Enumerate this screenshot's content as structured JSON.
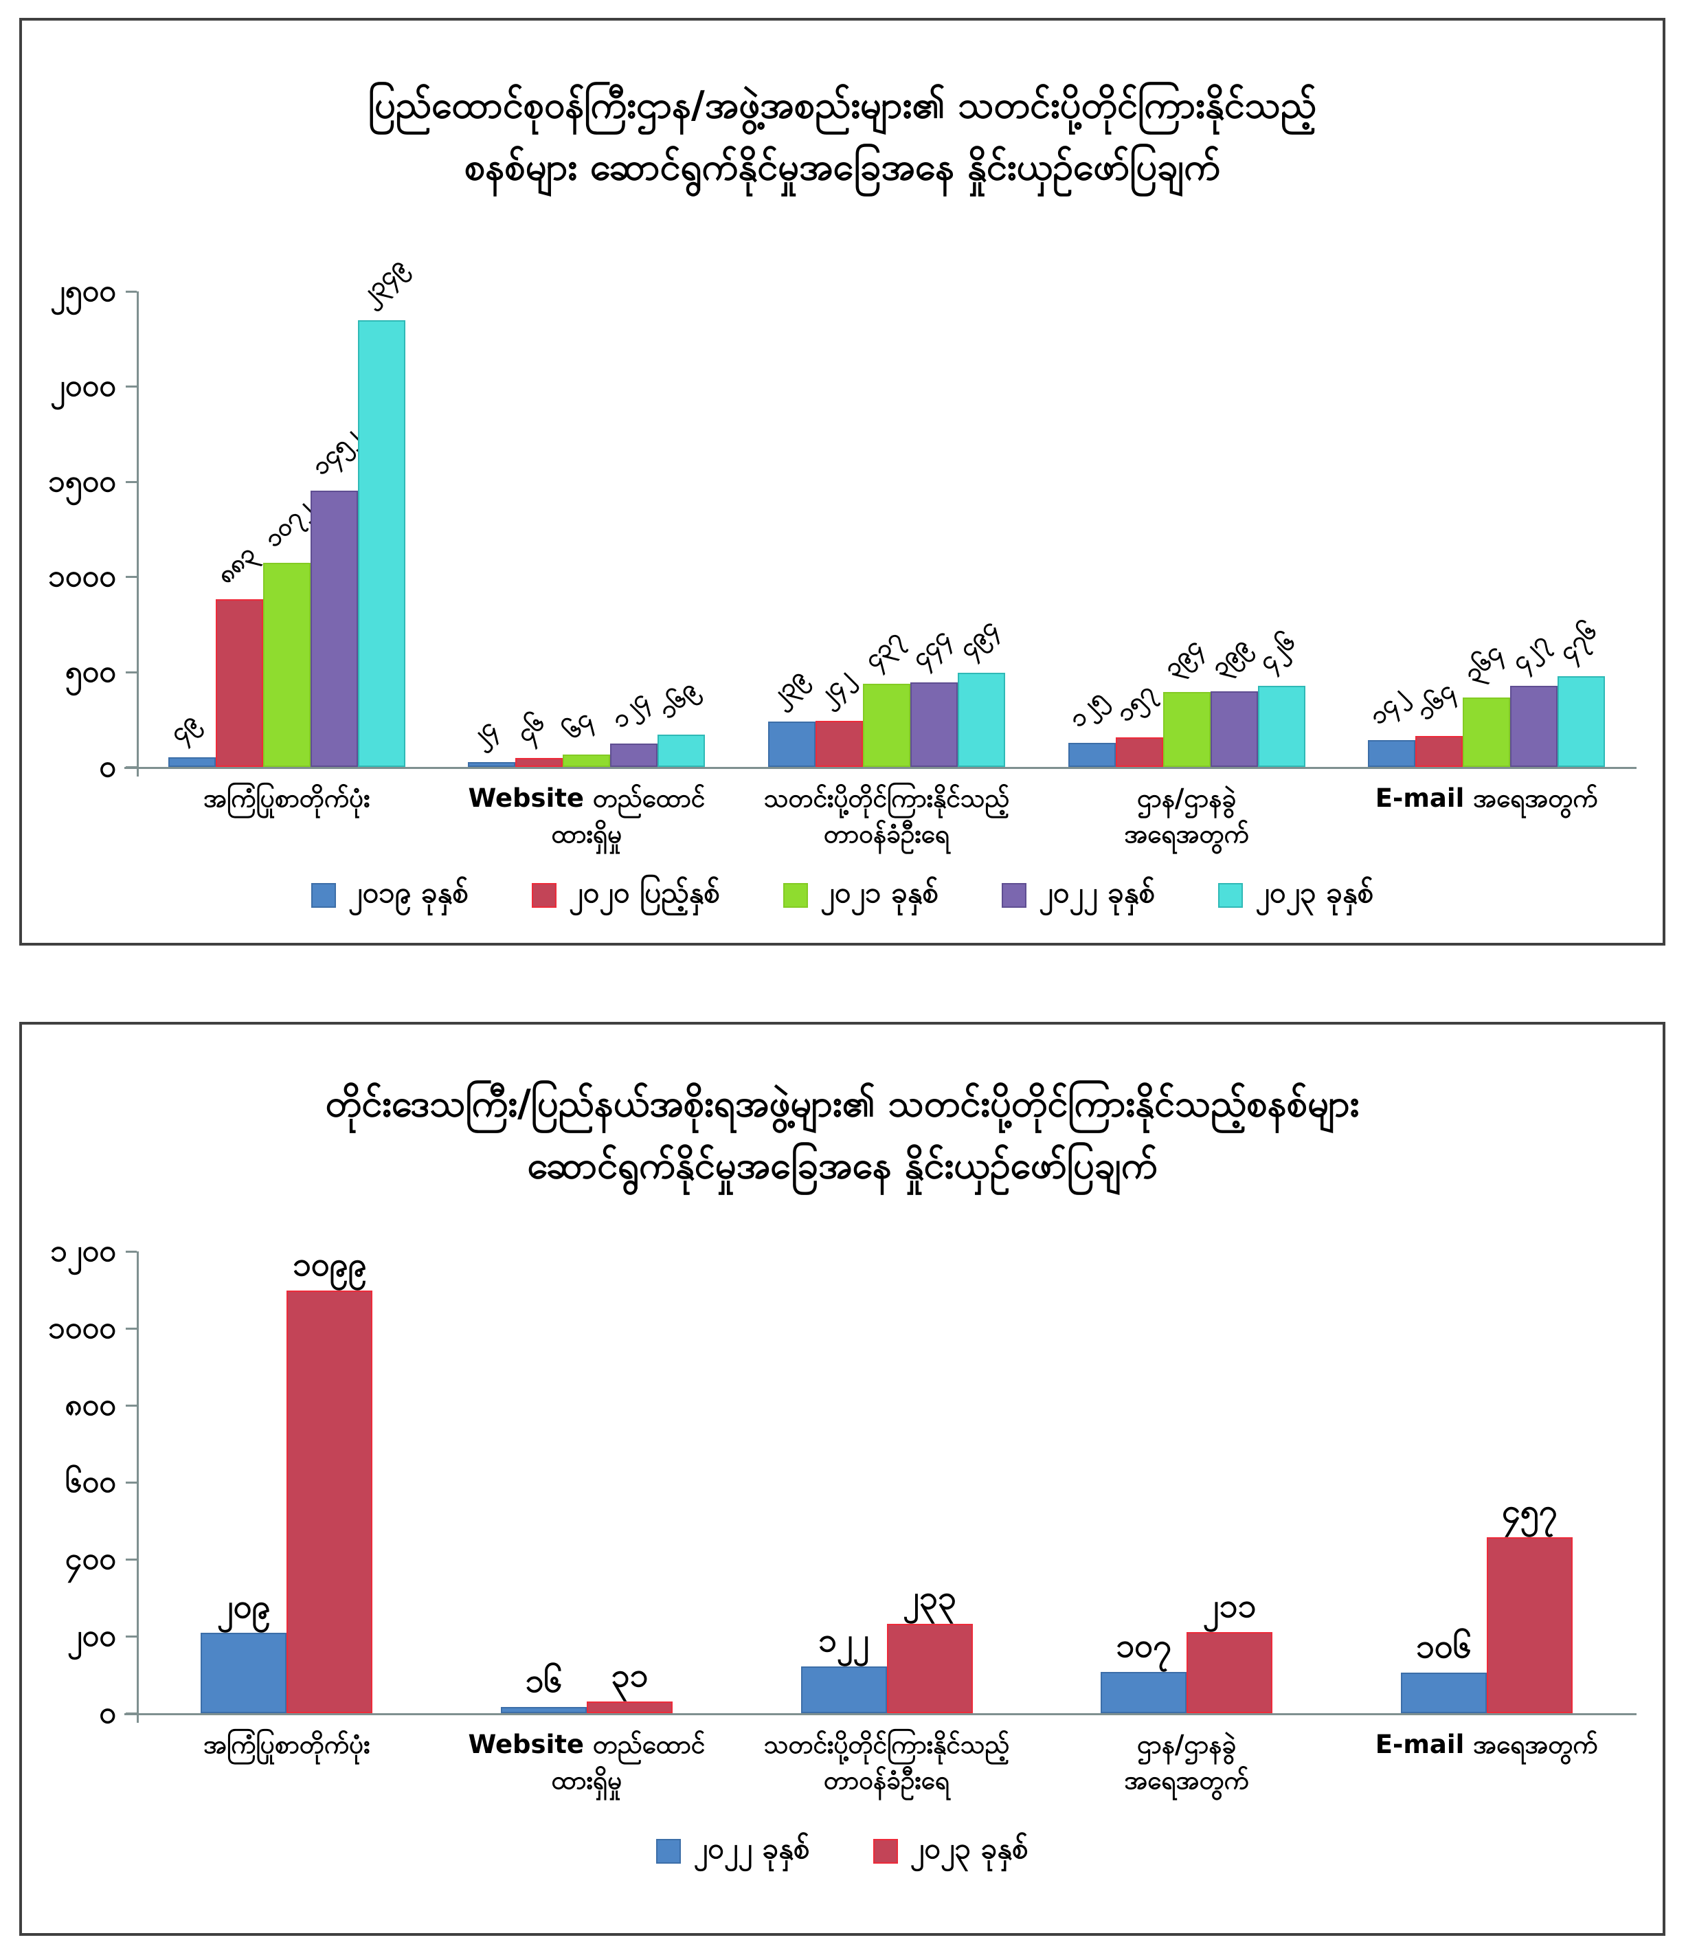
{
  "top_chart": {
    "title_line1": "ပြည်ထောင်စုဝန်ကြီးဌာန/အဖွဲ့အစည်းများ၏ သတင်းပို့တိုင်ကြားနိုင်သည့်",
    "title_line2": "စနစ်များ ဆောင်ရွက်နိုင်မှုအခြေအနေ နှိုင်းယှဉ်ဖော်ပြချက်"
  },
  "bottom_chart": {
    "title_line1": "တိုင်းဒေသကြီး/ပြည်နယ်အစိုးရအဖွဲ့များ၏ သတင်းပို့တိုင်ကြားနိုင်သည့်စနစ်များ",
    "title_line2": "ဆောင်ရွက်နိုင်မှုအခြေအနေ နှိုင်းယှဉ်ဖော်ပြချက်"
  },
  "categories_display": [
    {
      "line1": "အကြံပြုစာတိုက်ပုံး",
      "line2": ""
    },
    {
      "line1": "Website တည်ထောင်",
      "line2": "ထားရှိမှု"
    },
    {
      "line1": "သတင်းပို့တိုင်ကြားနိုင်သည့်",
      "line2": "တာဝန်ခံဦးရေ"
    },
    {
      "line1": "ဌာန/ဌာနခွဲ",
      "line2": "အရေအတွက်"
    },
    {
      "line1": "E-mail အရေအတွက်",
      "line2": ""
    }
  ],
  "colors": {
    "blue": {
      "fill": "#4E86C6",
      "border": "#3C6EA8"
    },
    "red": {
      "fill": "#C34457",
      "border": "#ED2B3A"
    },
    "green": {
      "fill": "#8FDC2F",
      "border": "#83CB24"
    },
    "purple": {
      "fill": "#7B67AF",
      "border": "#5F4E92"
    },
    "cyan": {
      "fill": "#4EDFDB",
      "border": "#2FB9B6"
    },
    "axis": "#7f9090",
    "frame": "#404040",
    "text": "#000000"
  },
  "chart_data": [
    {
      "type": "bar",
      "title": "ပြည်ထောင်စုဝန်ကြီးဌာန/အဖွဲ့အစည်းများ၏ သတင်းပို့တိုင်ကြားနိုင်သည့် စနစ်များ ဆောင်ရွက်နိုင်မှုအခြေအနေ နှိုင်းယှဉ်ဖော်ပြချက်",
      "categories": [
        "အကြံပြုစာတိုက်ပုံး",
        "Website တည်ထောင် ထားရှိမှု",
        "သတင်းပို့တိုင်ကြားနိုင်သည့် တာဝန်ခံဦးရေ",
        "ဌာန/ဌာနခွဲ အရေအတွက်",
        "E-mail အရေအတွက်"
      ],
      "series": [
        {
          "name": "၂၀၁၉ ခုနှစ်",
          "color_key": "blue",
          "values": [
            49,
            24,
            239,
            125,
            142
          ]
        },
        {
          "name": "၂၀၂၀ ပြည့်နှစ်",
          "color_key": "red",
          "values": [
            883,
            46,
            242,
            157,
            164
          ]
        },
        {
          "name": "၂၀၂၁ ခုနှစ်",
          "color_key": "green",
          "values": [
            1072,
            64,
            437,
            394,
            364
          ]
        },
        {
          "name": "၂၀၂၂ ခုနှစ်",
          "color_key": "purple",
          "values": [
            1452,
            124,
            444,
            399,
            427
          ]
        },
        {
          "name": "၂၀၂၃ ခုနှစ်",
          "color_key": "cyan",
          "values": [
            2349,
            169,
            494,
            426,
            476
          ]
        }
      ],
      "ylim": [
        0,
        2500
      ],
      "y_tick_step": 500,
      "y_tick_values": [
        0,
        500,
        1000,
        1500,
        2000,
        2500
      ],
      "numeral_system": "myanmar",
      "data_label_rotation_deg": 45,
      "grid": false,
      "legend_position": "bottom"
    },
    {
      "type": "bar",
      "title": "တိုင်းဒေသကြီး/ပြည်နယ်အစိုးရအဖွဲ့များ၏ သတင်းပို့တိုင်ကြားနိုင်သည့်စနစ်များ ဆောင်ရွက်နိုင်မှုအခြေအနေ နှိုင်းယှဉ်ဖော်ပြချက်",
      "categories": [
        "အကြံပြုစာတိုက်ပုံး",
        "Website တည်ထောင် ထားရှိမှု",
        "သတင်းပို့တိုင်ကြားနိုင်သည့် တာဝန်ခံဦးရေ",
        "ဌာန/ဌာနခွဲ အရေအတွက်",
        "E-mail အရေအတွက်"
      ],
      "series": [
        {
          "name": "၂၀၂၂ ခုနှစ်",
          "color_key": "blue",
          "values": [
            209,
            16,
            122,
            107,
            106
          ]
        },
        {
          "name": "၂၀၂၃ ခုနှစ်",
          "color_key": "red",
          "values": [
            1099,
            31,
            233,
            211,
            457
          ]
        }
      ],
      "ylim": [
        0,
        1200
      ],
      "y_tick_step": 200,
      "y_tick_values": [
        0,
        200,
        400,
        600,
        800,
        1000,
        1200
      ],
      "numeral_system": "myanmar",
      "data_label_rotation_deg": 0,
      "grid": false,
      "legend_position": "bottom"
    }
  ]
}
